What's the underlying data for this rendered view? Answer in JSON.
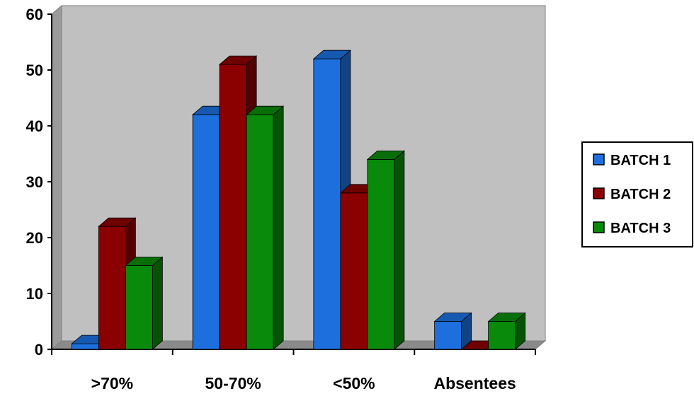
{
  "chart_data": {
    "type": "bar",
    "categories": [
      ">70%",
      "50-70%",
      "<50%",
      "Absentees"
    ],
    "series": [
      {
        "name": "BATCH 1",
        "values": [
          1,
          42,
          52,
          5
        ],
        "color": "#1c6fdc"
      },
      {
        "name": "BATCH 2",
        "values": [
          22,
          51,
          28,
          0
        ],
        "color": "#8b0000"
      },
      {
        "name": "BATCH 3",
        "values": [
          15,
          42,
          34,
          5
        ],
        "color": "#0a8a0a"
      }
    ],
    "ylim": [
      0,
      60
    ],
    "yticks": [
      0,
      10,
      20,
      30,
      40,
      50,
      60
    ],
    "grid": false,
    "legend_position": "right",
    "style": "3d-clustered-column",
    "plot_background": "#c0c0c0"
  }
}
